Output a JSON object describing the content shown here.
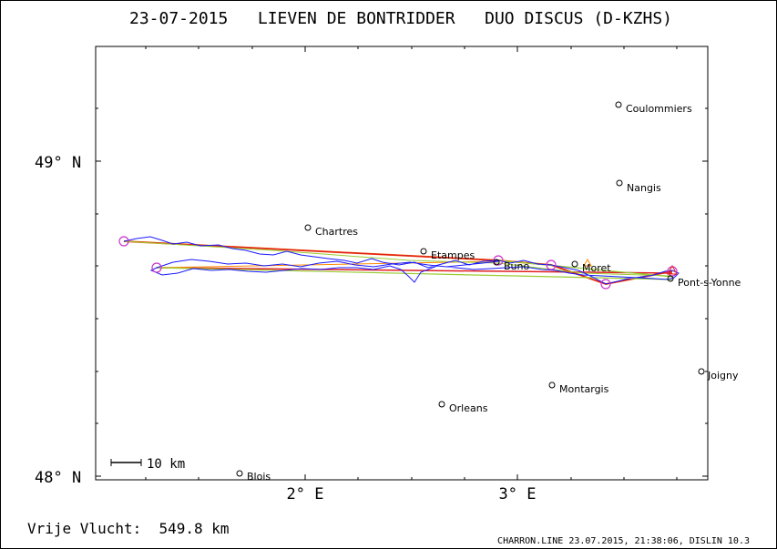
{
  "title": "23-07-2015   LIEVEN DE BONTRIDDER   DUO DISCUS (D-KZHS)",
  "y_labels": {
    "top": "49° N",
    "bottom": "48° N"
  },
  "x_labels": {
    "left": "2° E",
    "right": "3° E"
  },
  "scale_label": "10 km",
  "distance_label": "Vrije Vlucht:  549.8 km",
  "footer": "CHARRON.LINE 23.07.2015, 21:38:06, DISLIN 10.3",
  "towns": [
    {
      "id": "coulommiers",
      "name": "Coulommiers"
    },
    {
      "id": "nangis",
      "name": "Nangis"
    },
    {
      "id": "chartres",
      "name": "Chartres"
    },
    {
      "id": "etampes",
      "name": "Etampes"
    },
    {
      "id": "buno",
      "name": "Buno"
    },
    {
      "id": "moret",
      "name": "Moret"
    },
    {
      "id": "pont",
      "name": "Pont-s-Yonne"
    },
    {
      "id": "joigny",
      "name": "Joigny"
    },
    {
      "id": "montargis",
      "name": "Montargis"
    },
    {
      "id": "orleans",
      "name": "Orleans"
    },
    {
      "id": "blois",
      "name": "Blois"
    }
  ],
  "colors": {
    "track": "#1a1aff",
    "leg_red": "#e02020",
    "leg_orange": "#ff8800",
    "leg_green": "#99cc33",
    "turnpoint": "#cc33cc"
  }
}
